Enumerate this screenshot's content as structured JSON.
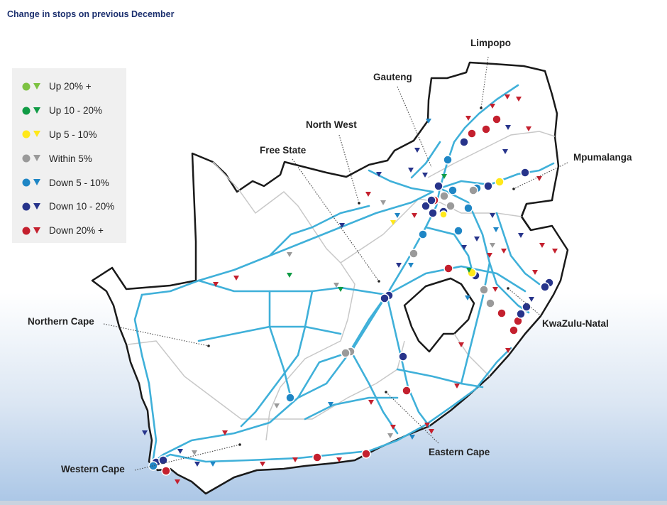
{
  "title": "Change in stops on previous December",
  "colors": {
    "outline": "#1a1a1a",
    "roads": "#3fb0d9",
    "province_borders": "#c8c8c8",
    "land": "#ffffff",
    "sea_bottom": "#aac6e6"
  },
  "legend": {
    "items": [
      {
        "label": "Up 20% +",
        "color": "#7dc242"
      },
      {
        "label": "Up 10 - 20%",
        "color": "#109b45"
      },
      {
        "label": "Up 5 - 10%",
        "color": "#ffe81a"
      },
      {
        "label": "Within 5%",
        "color": "#9a9a9a"
      },
      {
        "label": "Down 5 - 10%",
        "color": "#1f86c5"
      },
      {
        "label": "Down 10 - 20%",
        "color": "#27348b"
      },
      {
        "label": "Down 20% +",
        "color": "#c4202e"
      }
    ]
  },
  "provinces": [
    {
      "id": "limpopo",
      "label": "Limpopo"
    },
    {
      "id": "gauteng",
      "label": "Gauteng"
    },
    {
      "id": "north-west",
      "label": "North West"
    },
    {
      "id": "free-state",
      "label": "Free State"
    },
    {
      "id": "mpumalanga",
      "label": "Mpumalanga"
    },
    {
      "id": "northern-cape",
      "label": "Northern Cape"
    },
    {
      "id": "kwazulu-natal",
      "label": "KwaZulu-Natal"
    },
    {
      "id": "eastern-cape",
      "label": "Eastern Cape"
    },
    {
      "id": "western-cape",
      "label": "Western Cape"
    }
  ]
}
